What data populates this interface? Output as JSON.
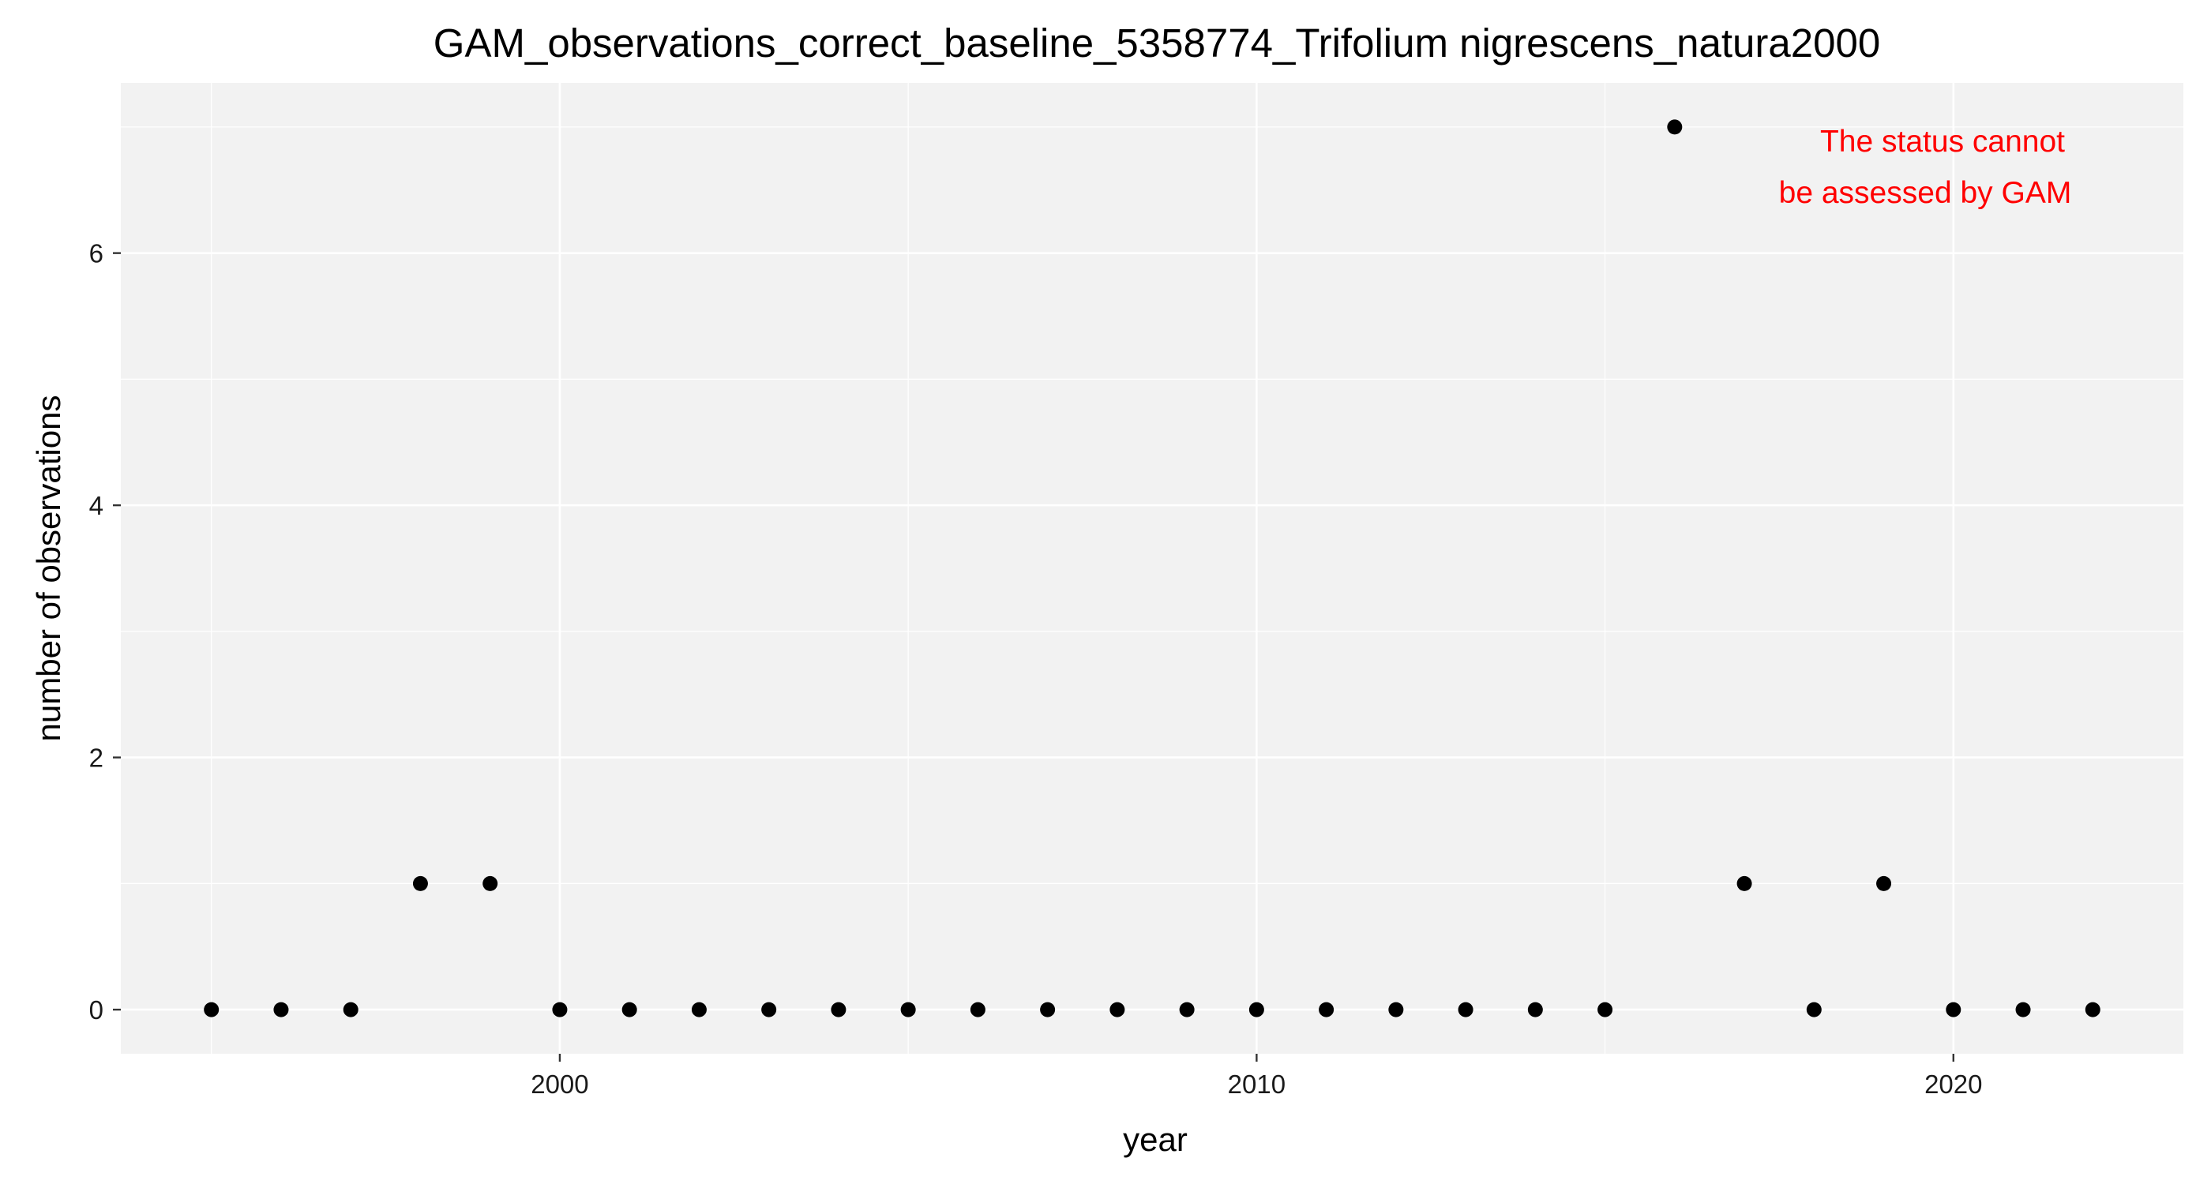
{
  "chart_data": {
    "type": "scatter",
    "title": "GAM_observations_correct_baseline_5358774_Trifolium nigrescens_natura2000",
    "xlabel": "year",
    "ylabel": "number of observations",
    "xlim": [
      1993.7,
      2023.3
    ],
    "ylim": [
      -0.35,
      7.35
    ],
    "x_ticks": [
      2000,
      2010,
      2020
    ],
    "x_tick_labels": [
      "2000",
      "2010",
      "2020"
    ],
    "y_ticks": [
      0,
      2,
      4,
      6
    ],
    "y_tick_labels": [
      "0",
      "2",
      "4",
      "6"
    ],
    "grid": true,
    "colors": {
      "panel_background": "#f2f2f2",
      "grid": "#ffffff",
      "point": "#000000",
      "annotation": "#ff0000"
    },
    "annotation": {
      "lines": [
        "The status cannot",
        "be assessed by GAM"
      ]
    },
    "x": [
      1995,
      1996,
      1997,
      1998,
      1999,
      2000,
      2001,
      2002,
      2003,
      2004,
      2005,
      2006,
      2007,
      2008,
      2009,
      2010,
      2011,
      2012,
      2013,
      2014,
      2015,
      2016,
      2017,
      2018,
      2019,
      2020,
      2021,
      2022
    ],
    "y": [
      0,
      0,
      0,
      1,
      1,
      0,
      0,
      0,
      0,
      0,
      0,
      0,
      0,
      0,
      0,
      0,
      0,
      0,
      0,
      0,
      0,
      7,
      1,
      0,
      1,
      0,
      0,
      0
    ]
  }
}
